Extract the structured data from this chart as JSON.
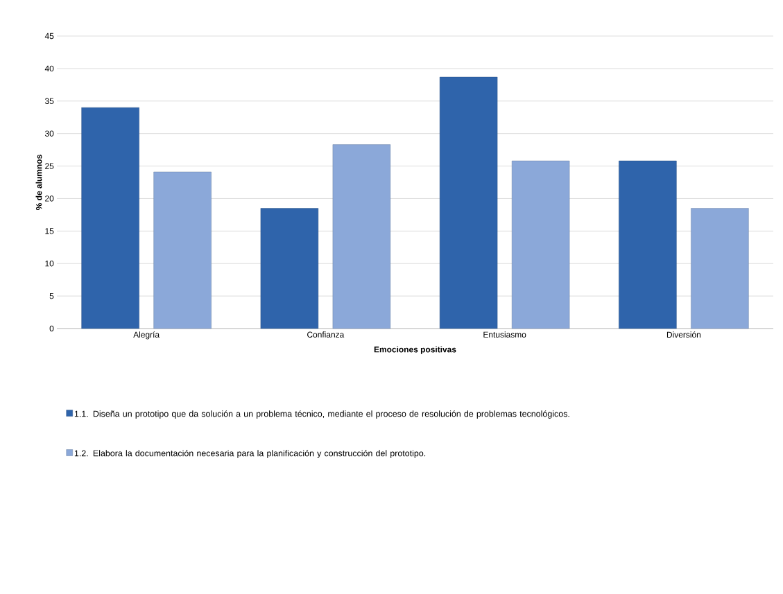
{
  "chart_data": {
    "type": "bar",
    "xlabel": "Emociones positivas",
    "ylabel": "% de alumnos",
    "categories": [
      "Alegría",
      "Confianza",
      "Entusiasmo",
      "Diversión"
    ],
    "series": [
      {
        "name": "1.1. Diseña un prototipo que da solución a un problema técnico, mediante el proceso de resolución de problemas tecnológicos.",
        "color": "#2f64ab",
        "values": [
          34,
          18.5,
          38.7,
          25.8
        ]
      },
      {
        "name": "1.2. Elabora la documentación necesaria para la planificación y construcción del prototipo.",
        "color": "#8ba8d9",
        "values": [
          24.1,
          28.3,
          25.8,
          18.5
        ]
      }
    ],
    "ylim": [
      0,
      45
    ],
    "yticks": [
      0,
      5,
      10,
      15,
      20,
      25,
      30,
      35,
      40,
      45
    ],
    "grid": "y",
    "legend": "bottom"
  }
}
